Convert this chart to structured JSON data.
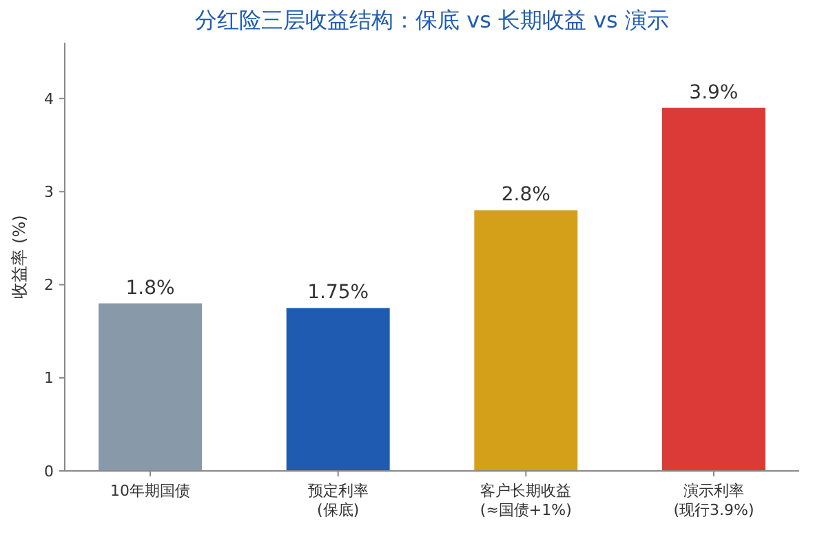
{
  "chart_data": {
    "type": "bar",
    "title": "分红险三层收益结构：保底 vs 长期收益 vs 演示",
    "ylabel": "收益率 (%)",
    "categories": [
      "10年期国债",
      "预定利率\n(保底)",
      "客户长期收益\n(≈国债+1%)",
      "演示利率\n(现行3.9%)"
    ],
    "values": [
      1.8,
      1.75,
      2.8,
      3.9
    ],
    "colors": [
      "#8899a9",
      "#1f5bb0",
      "#d4a019",
      "#dc3a37"
    ],
    "value_labels": [
      "1.8%",
      "1.75%",
      "2.8%",
      "3.9%"
    ],
    "ylim": [
      0,
      4.6
    ],
    "yticks": [
      0,
      1,
      2,
      3,
      4
    ],
    "grid": false
  }
}
